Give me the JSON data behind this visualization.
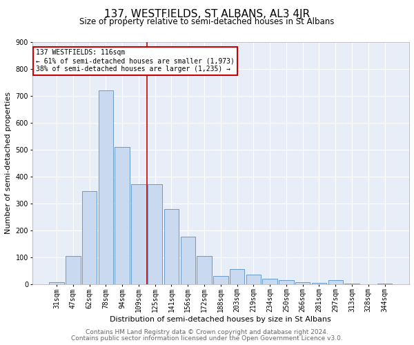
{
  "title": "137, WESTFIELDS, ST ALBANS, AL3 4JR",
  "subtitle": "Size of property relative to semi-detached houses in St Albans",
  "xlabel": "Distribution of semi-detached houses by size in St Albans",
  "ylabel": "Number of semi-detached properties",
  "categories": [
    "31sqm",
    "47sqm",
    "62sqm",
    "78sqm",
    "94sqm",
    "109sqm",
    "125sqm",
    "141sqm",
    "156sqm",
    "172sqm",
    "188sqm",
    "203sqm",
    "219sqm",
    "234sqm",
    "250sqm",
    "266sqm",
    "281sqm",
    "297sqm",
    "313sqm",
    "328sqm",
    "344sqm"
  ],
  "values": [
    8,
    105,
    345,
    720,
    510,
    370,
    370,
    280,
    175,
    105,
    30,
    55,
    35,
    20,
    15,
    8,
    5,
    15,
    3,
    0,
    3
  ],
  "bar_color": "#c9daf0",
  "bar_edge_color": "#6699cc",
  "vline_position": 5.5,
  "vline_color": "#cc0000",
  "annotation_line1": "137 WESTFIELDS: 116sqm",
  "annotation_line2": "← 61% of semi-detached houses are smaller (1,973)",
  "annotation_line3": "38% of semi-detached houses are larger (1,235) →",
  "annotation_box_color": "#ffffff",
  "annotation_box_edge": "#cc0000",
  "ylim": [
    0,
    900
  ],
  "yticks": [
    0,
    100,
    200,
    300,
    400,
    500,
    600,
    700,
    800,
    900
  ],
  "footer_line1": "Contains HM Land Registry data © Crown copyright and database right 2024.",
  "footer_line2": "Contains public sector information licensed under the Open Government Licence v3.0.",
  "background_color": "#ffffff",
  "plot_bg_color": "#e8eef8",
  "grid_color": "#ffffff",
  "title_fontsize": 11,
  "subtitle_fontsize": 8.5,
  "axis_label_fontsize": 8,
  "tick_fontsize": 7,
  "footer_fontsize": 6.5
}
